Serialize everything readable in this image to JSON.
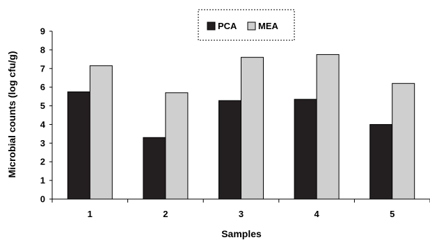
{
  "chart_data": {
    "type": "bar",
    "categories": [
      "1",
      "2",
      "3",
      "4",
      "5"
    ],
    "series": [
      {
        "name": "PCA",
        "values": [
          5.75,
          3.3,
          5.28,
          5.35,
          4.0
        ],
        "color": "#231f20"
      },
      {
        "name": "MEA",
        "values": [
          7.15,
          5.7,
          7.6,
          7.75,
          6.2
        ],
        "color": "#cfcfcf"
      }
    ],
    "xlabel": "Samples",
    "ylabel": "Microbial counts (log cfu/g)",
    "ylim": [
      0,
      9
    ],
    "yticks": [
      "0",
      "1",
      "2",
      "3",
      "4",
      "5",
      "6",
      "7",
      "8",
      "9"
    ],
    "grid": false,
    "legend_position": "top-center",
    "legend_border": "dotted"
  }
}
